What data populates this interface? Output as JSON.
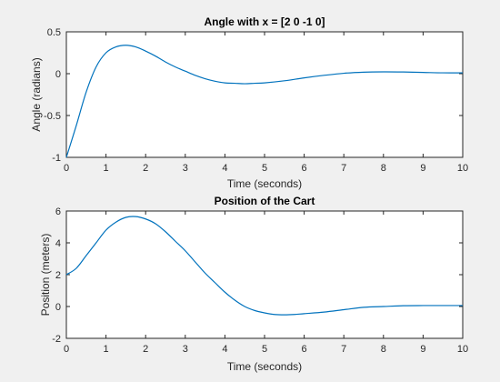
{
  "colors": {
    "figure_background": "#f0f0f0",
    "axes_background": "#ffffff",
    "axis_color": "#262626",
    "line_color": "#0072bd"
  },
  "chart_data": [
    {
      "type": "line",
      "title": "Angle with x = [2 0 -1 0]",
      "xlabel": "Time (seconds)",
      "ylabel": "Angle (radians)",
      "xlim": [
        0,
        10
      ],
      "ylim": [
        -1,
        0.5
      ],
      "xticks": [
        0,
        1,
        2,
        3,
        4,
        5,
        6,
        7,
        8,
        9,
        10
      ],
      "xtick_labels": [
        "0",
        "1",
        "2",
        "3",
        "4",
        "5",
        "6",
        "7",
        "8",
        "9",
        "10"
      ],
      "yticks": [
        -1,
        -0.5,
        0,
        0.5
      ],
      "ytick_labels": [
        "-1",
        "-0.5",
        "0",
        "0.5"
      ],
      "grid": false,
      "series": [
        {
          "color": "#0072bd",
          "x": [
            0,
            0.25,
            0.5,
            0.75,
            1.0,
            1.25,
            1.5,
            1.75,
            2.0,
            2.25,
            2.5,
            2.75,
            3.0,
            3.25,
            3.5,
            3.75,
            4.0,
            4.25,
            4.5,
            4.75,
            5.0,
            5.5,
            6.0,
            6.5,
            7.0,
            7.5,
            8.0,
            8.5,
            9.0,
            9.5,
            10.0
          ],
          "y": [
            -1.0,
            -0.62,
            -0.22,
            0.08,
            0.25,
            0.32,
            0.34,
            0.32,
            0.27,
            0.21,
            0.14,
            0.08,
            0.03,
            -0.02,
            -0.06,
            -0.09,
            -0.11,
            -0.115,
            -0.12,
            -0.115,
            -0.11,
            -0.085,
            -0.05,
            -0.02,
            0.005,
            0.018,
            0.022,
            0.02,
            0.015,
            0.01,
            0.01
          ]
        }
      ]
    },
    {
      "type": "line",
      "title": "Position of the Cart",
      "xlabel": "Time (seconds)",
      "ylabel": "Position (meters)",
      "xlim": [
        0,
        10
      ],
      "ylim": [
        -2,
        6
      ],
      "xticks": [
        0,
        1,
        2,
        3,
        4,
        5,
        6,
        7,
        8,
        9,
        10
      ],
      "xtick_labels": [
        "0",
        "1",
        "2",
        "3",
        "4",
        "5",
        "6",
        "7",
        "8",
        "9",
        "10"
      ],
      "yticks": [
        -2,
        0,
        2,
        4,
        6
      ],
      "ytick_labels": [
        "-2",
        "0",
        "2",
        "4",
        "6"
      ],
      "grid": false,
      "series": [
        {
          "color": "#0072bd",
          "x": [
            0,
            0.25,
            0.5,
            0.75,
            1.0,
            1.25,
            1.5,
            1.75,
            2.0,
            2.25,
            2.5,
            2.75,
            3.0,
            3.25,
            3.5,
            3.75,
            4.0,
            4.25,
            4.5,
            4.75,
            5.0,
            5.25,
            5.5,
            5.75,
            6.0,
            6.5,
            7.0,
            7.5,
            8.0,
            8.5,
            9.0,
            9.5,
            10.0
          ],
          "y": [
            2.0,
            2.4,
            3.2,
            4.0,
            4.8,
            5.3,
            5.6,
            5.65,
            5.5,
            5.2,
            4.7,
            4.1,
            3.5,
            2.8,
            2.1,
            1.5,
            0.9,
            0.4,
            0.0,
            -0.25,
            -0.4,
            -0.5,
            -0.52,
            -0.5,
            -0.45,
            -0.35,
            -0.2,
            -0.05,
            0.0,
            0.05,
            0.06,
            0.06,
            0.06
          ]
        }
      ]
    }
  ]
}
